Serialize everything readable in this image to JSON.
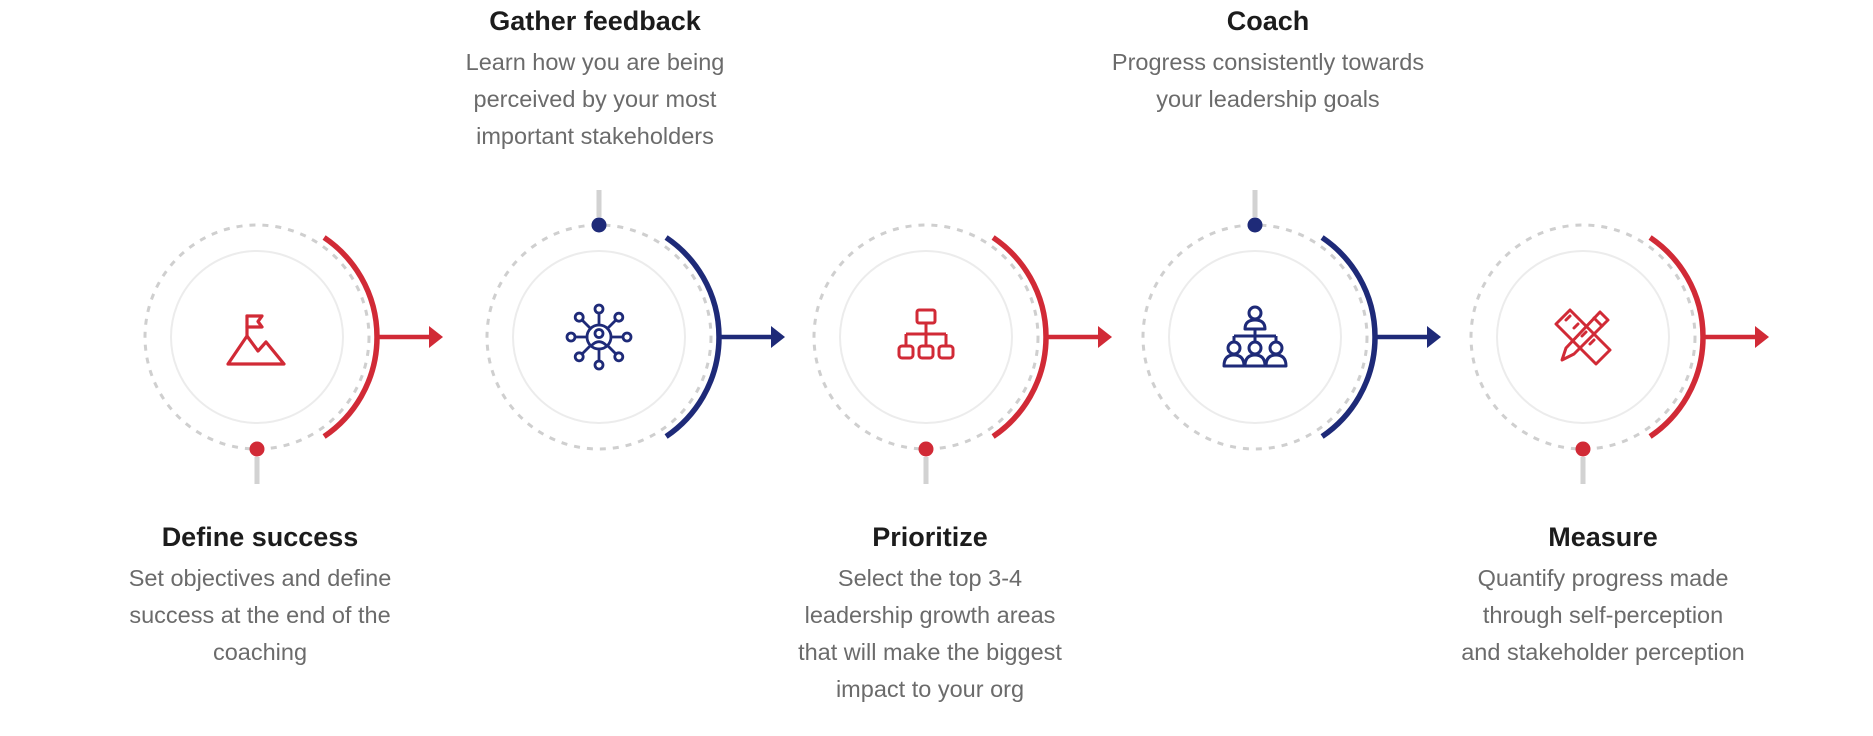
{
  "colors": {
    "red": "#d12a36",
    "navy": "#1e2a78",
    "dash": "#cfcfcf",
    "inner": "#ececec",
    "stem": "#d2d2d2"
  },
  "steps": [
    {
      "title": "Define success",
      "desc": [
        "Set objectives and define",
        "success at the end of the",
        "coaching"
      ],
      "icon": "flag-mountain-icon",
      "color": "red",
      "text_position": "bottom"
    },
    {
      "title": "Gather feedback",
      "desc": [
        "Learn how you are being",
        "perceived by your most",
        "important stakeholders"
      ],
      "icon": "network-hub-icon",
      "color": "navy",
      "text_position": "top"
    },
    {
      "title": "Prioritize",
      "desc": [
        "Select the top 3-4",
        "leadership growth areas",
        "that will make the biggest",
        "impact to your org"
      ],
      "icon": "hierarchy-icon",
      "color": "red",
      "text_position": "bottom"
    },
    {
      "title": "Coach",
      "desc": [
        "Progress consistently towards",
        "your leadership goals"
      ],
      "icon": "team-icon",
      "color": "navy",
      "text_position": "top"
    },
    {
      "title": "Measure",
      "desc": [
        "Quantify progress made",
        "through self-perception",
        "and stakeholder perception"
      ],
      "icon": "pencil-ruler-icon",
      "color": "red",
      "text_position": "bottom"
    }
  ]
}
